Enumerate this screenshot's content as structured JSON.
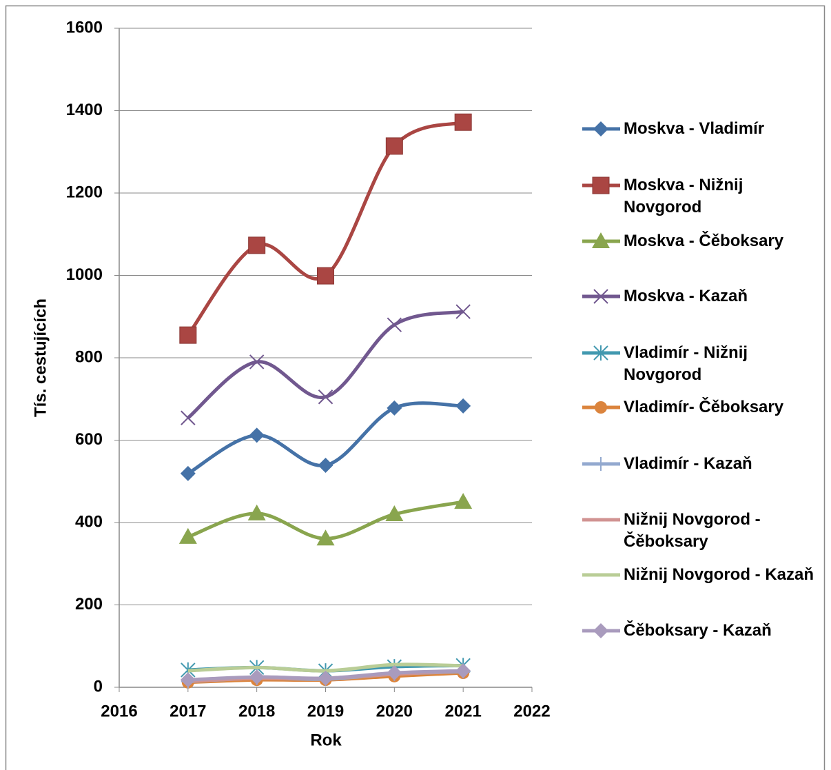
{
  "chart_data": {
    "type": "line",
    "xlabel": "Rok",
    "ylabel": "Tís. cestujících",
    "x": [
      2017,
      2018,
      2019,
      2020,
      2021
    ],
    "xlim": [
      2016,
      2022
    ],
    "xticks": [
      2016,
      2017,
      2018,
      2019,
      2020,
      2021,
      2022
    ],
    "ylim": [
      0,
      1600
    ],
    "yticks": [
      0,
      200,
      400,
      600,
      800,
      1000,
      1200,
      1400,
      1600
    ],
    "grid": true,
    "smooth": true,
    "legend": "right",
    "series": [
      {
        "name": "Moskva - Vladimír",
        "color": "#4572a7",
        "marker": "diamond",
        "values": [
          519,
          612,
          539,
          678,
          683
        ]
      },
      {
        "name": "Moskva - Nižnij Novgorod",
        "color": "#aa4643",
        "marker": "square",
        "values": [
          855,
          1073,
          999,
          1314,
          1372
        ]
      },
      {
        "name": "Moskva - Čěboksary",
        "color": "#89a54e",
        "marker": "triangle",
        "values": [
          365,
          422,
          361,
          420,
          450
        ]
      },
      {
        "name": "Moskva - Kazaň",
        "color": "#71588f",
        "marker": "x",
        "values": [
          654,
          790,
          705,
          880,
          912
        ]
      },
      {
        "name": "Vladimír - Nižnij Novgorod",
        "color": "#4198af",
        "marker": "star",
        "values": [
          42,
          48,
          40,
          50,
          53
        ]
      },
      {
        "name": "Vladimír- Čěboksary",
        "color": "#db843d",
        "marker": "circle",
        "values": [
          12,
          18,
          18,
          27,
          35
        ]
      },
      {
        "name": "Vladimír - Kazaň",
        "color": "#93a9cf",
        "marker": "plus",
        "values": [
          14,
          22,
          20,
          32,
          38
        ]
      },
      {
        "name": "Nižnij Novgorod - Čěboksary",
        "color": "#d19392",
        "marker": "none",
        "values": [
          15,
          22,
          22,
          32,
          40
        ]
      },
      {
        "name": "Nižnij Novgorod - Kazaň",
        "color": "#b9cd96",
        "marker": "none",
        "values": [
          40,
          48,
          40,
          55,
          52
        ]
      },
      {
        "name": "Čěboksary - Kazaň",
        "color": "#a99bbd",
        "marker": "diamond",
        "values": [
          18,
          25,
          22,
          35,
          40
        ]
      }
    ]
  }
}
